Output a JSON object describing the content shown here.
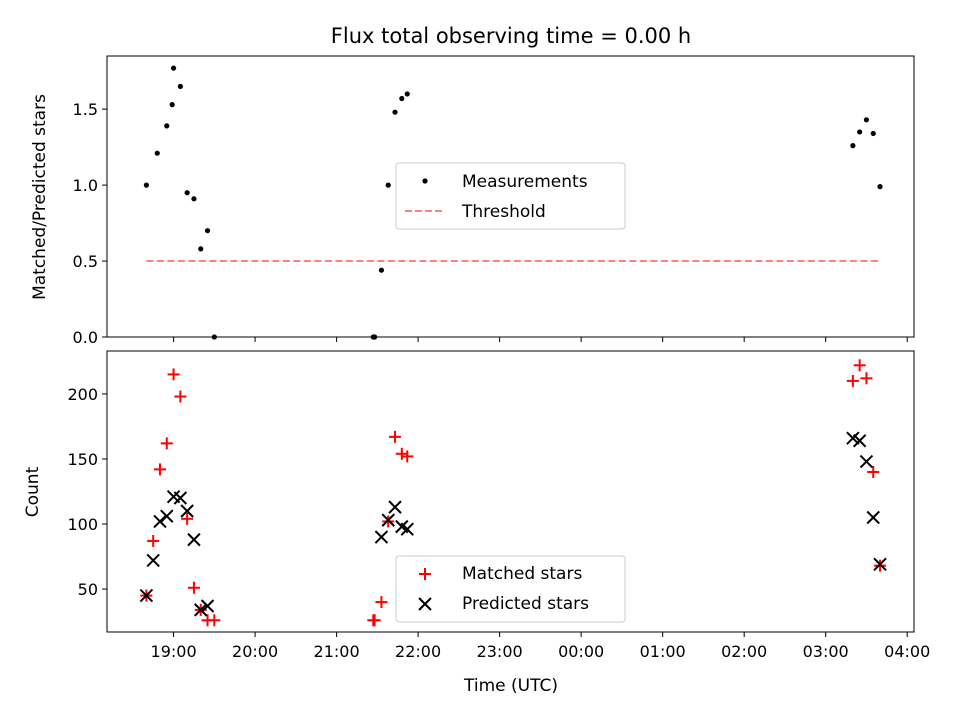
{
  "chart_data": [
    {
      "type": "scatter",
      "title": "Flux total observing time = 0.00 h",
      "xlabel": "",
      "ylabel": "Matched/Predicted stars",
      "ylim": [
        0,
        1.85
      ],
      "xlim": [
        "18:11",
        "04:05"
      ],
      "yticks": [
        0.0,
        0.5,
        1.0,
        1.5
      ],
      "ytick_labels": [
        "0.0",
        "0.5",
        "1.0",
        "1.5"
      ],
      "grid": false,
      "legend_position": "center",
      "series": [
        {
          "name": "Measurements",
          "color": "#000000",
          "marker": "dot",
          "x": [
            "18:40",
            "18:48",
            "18:55",
            "18:59",
            "19:00",
            "19:05",
            "19:10",
            "19:15",
            "19:20",
            "19:25",
            "19:30",
            "21:27",
            "21:28",
            "21:33",
            "21:38",
            "21:43",
            "21:48",
            "21:52",
            "03:20",
            "03:25",
            "03:30",
            "03:35",
            "03:40"
          ],
          "y": [
            1.0,
            1.21,
            1.39,
            1.53,
            1.77,
            1.65,
            0.95,
            0.91,
            0.58,
            0.7,
            0.0,
            0.0,
            0.0,
            0.44,
            1.0,
            1.48,
            1.57,
            1.6,
            1.26,
            1.35,
            1.43,
            1.34,
            0.99
          ]
        },
        {
          "name": "Threshold",
          "color": "#ff8080",
          "line": "dashed",
          "x": [
            "18:40",
            "03:40"
          ],
          "y": [
            0.5,
            0.5
          ]
        }
      ]
    },
    {
      "type": "scatter",
      "title": "",
      "xlabel": "Time (UTC)",
      "ylabel": "Count",
      "ylim": [
        17,
        233
      ],
      "xlim": [
        "18:11",
        "04:05"
      ],
      "yticks": [
        50,
        100,
        150,
        200
      ],
      "ytick_labels": [
        "50",
        "100",
        "150",
        "200"
      ],
      "x_tick_labels": [
        "19:00",
        "20:00",
        "21:00",
        "22:00",
        "23:00",
        "00:00",
        "01:00",
        "02:00",
        "03:00",
        "04:00"
      ],
      "grid": false,
      "legend_position": "bottom-center",
      "series": [
        {
          "name": "Matched stars",
          "color": "#ff0000",
          "marker": "plus",
          "x": [
            "18:40",
            "18:45",
            "18:50",
            "18:55",
            "19:00",
            "19:05",
            "19:10",
            "19:15",
            "19:20",
            "19:25",
            "19:30",
            "21:27",
            "21:28",
            "21:33",
            "21:38",
            "21:43",
            "21:48",
            "21:52",
            "03:20",
            "03:25",
            "03:30",
            "03:35",
            "03:40"
          ],
          "y": [
            45,
            87,
            142,
            162,
            215,
            198,
            104,
            51,
            34,
            26,
            26,
            26,
            26,
            40,
            102,
            167,
            154,
            152,
            210,
            222,
            212,
            140,
            68
          ]
        },
        {
          "name": "Predicted stars",
          "color": "#000000",
          "marker": "x",
          "x": [
            "18:40",
            "18:45",
            "18:50",
            "18:55",
            "19:00",
            "19:05",
            "19:10",
            "19:15",
            "19:20",
            "19:25",
            "21:33",
            "21:38",
            "21:43",
            "21:48",
            "21:52",
            "03:20",
            "03:25",
            "03:30",
            "03:35",
            "03:40"
          ],
          "y": [
            45,
            72,
            102,
            106,
            121,
            120,
            110,
            88,
            34,
            37,
            90,
            103,
            113,
            98,
            96,
            166,
            164,
            148,
            105,
            69
          ]
        }
      ]
    }
  ]
}
